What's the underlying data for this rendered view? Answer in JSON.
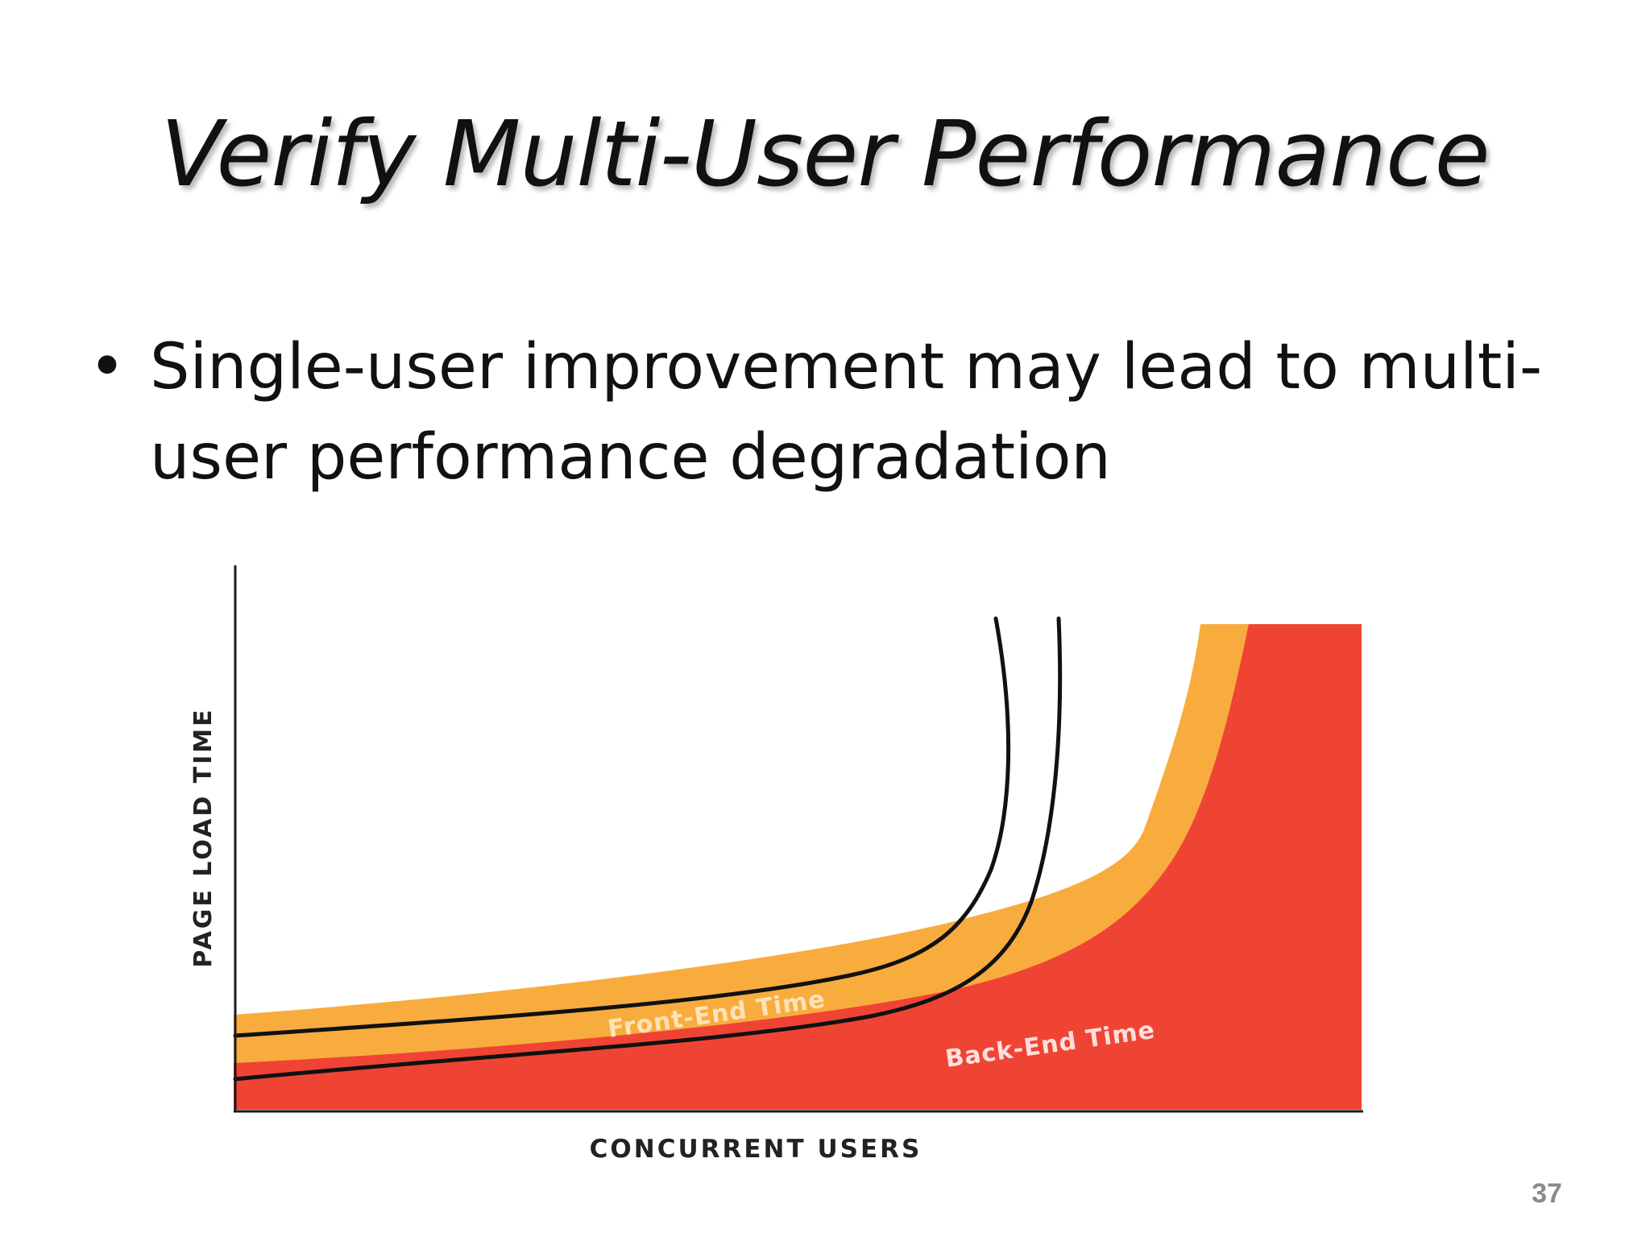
{
  "slide": {
    "title": "Verify Multi-User Performance",
    "bullet": "Single-user improvement may lead to multi-user performance degradation",
    "page_number": "37"
  },
  "chart": {
    "y_axis_label": "PAGE LOAD TIME",
    "x_axis_label": "CONCURRENT USERS",
    "front_end_label": "Front-End Time",
    "back_end_label": "Back-End Time"
  },
  "colors": {
    "front_end": "#f8ac3e",
    "back_end": "#ef4434",
    "curve": "#111111",
    "axis": "#1a1a1a"
  }
}
